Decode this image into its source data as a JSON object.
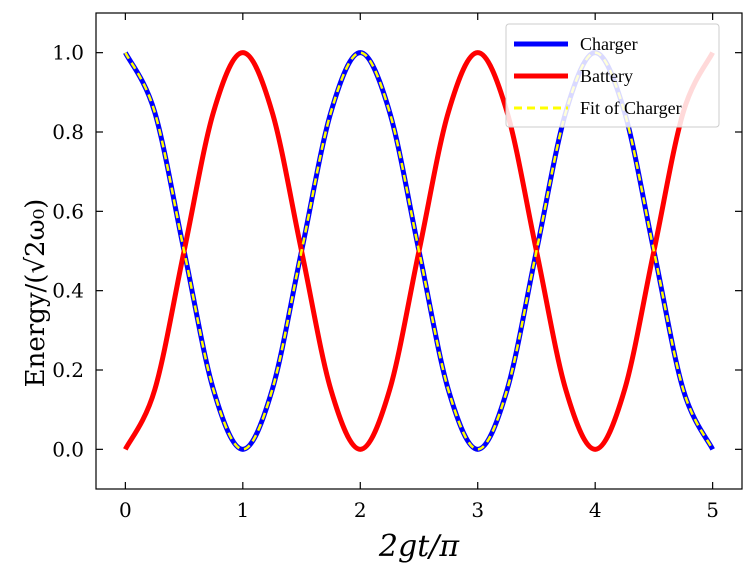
{
  "chart_data": {
    "type": "line",
    "xlabel": "2gt/π",
    "ylabel": "Energy/(√2ω₀)",
    "xlim": [
      -0.25,
      5.25
    ],
    "ylim": [
      -0.1,
      1.1
    ],
    "xticks": [
      "0",
      "1",
      "2",
      "3",
      "4",
      "5"
    ],
    "yticks": [
      "0.0",
      "0.2",
      "0.4",
      "0.6",
      "0.8",
      "1.0"
    ],
    "grid": false,
    "legend_position": "top-right",
    "x": [
      0,
      0.25,
      0.5,
      0.75,
      1.0,
      1.25,
      1.5,
      1.75,
      2.0,
      2.25,
      2.5,
      2.75,
      3.0,
      3.25,
      3.5,
      3.75,
      4.0,
      4.25,
      4.5,
      4.75,
      5.0
    ],
    "series": [
      {
        "name": "Charger",
        "color": "#0000ff",
        "style": "solid",
        "values": [
          1.0,
          0.85,
          0.5,
          0.15,
          0.0,
          0.15,
          0.5,
          0.85,
          1.0,
          0.85,
          0.5,
          0.15,
          0.0,
          0.15,
          0.5,
          0.85,
          1.0,
          0.85,
          0.5,
          0.15,
          0.0
        ]
      },
      {
        "name": "Battery",
        "color": "#ff0000",
        "style": "solid",
        "values": [
          0.0,
          0.15,
          0.5,
          0.85,
          1.0,
          0.85,
          0.5,
          0.15,
          0.0,
          0.15,
          0.5,
          0.85,
          1.0,
          0.85,
          0.5,
          0.15,
          0.0,
          0.15,
          0.5,
          0.85,
          1.0
        ]
      },
      {
        "name": "Fit of Charger",
        "color": "#ffff00",
        "style": "dashed",
        "values": [
          1.0,
          0.85,
          0.5,
          0.15,
          0.0,
          0.15,
          0.5,
          0.85,
          1.0,
          0.85,
          0.5,
          0.15,
          0.0,
          0.15,
          0.5,
          0.85,
          1.0,
          0.85,
          0.5,
          0.15,
          0.0
        ]
      }
    ]
  }
}
